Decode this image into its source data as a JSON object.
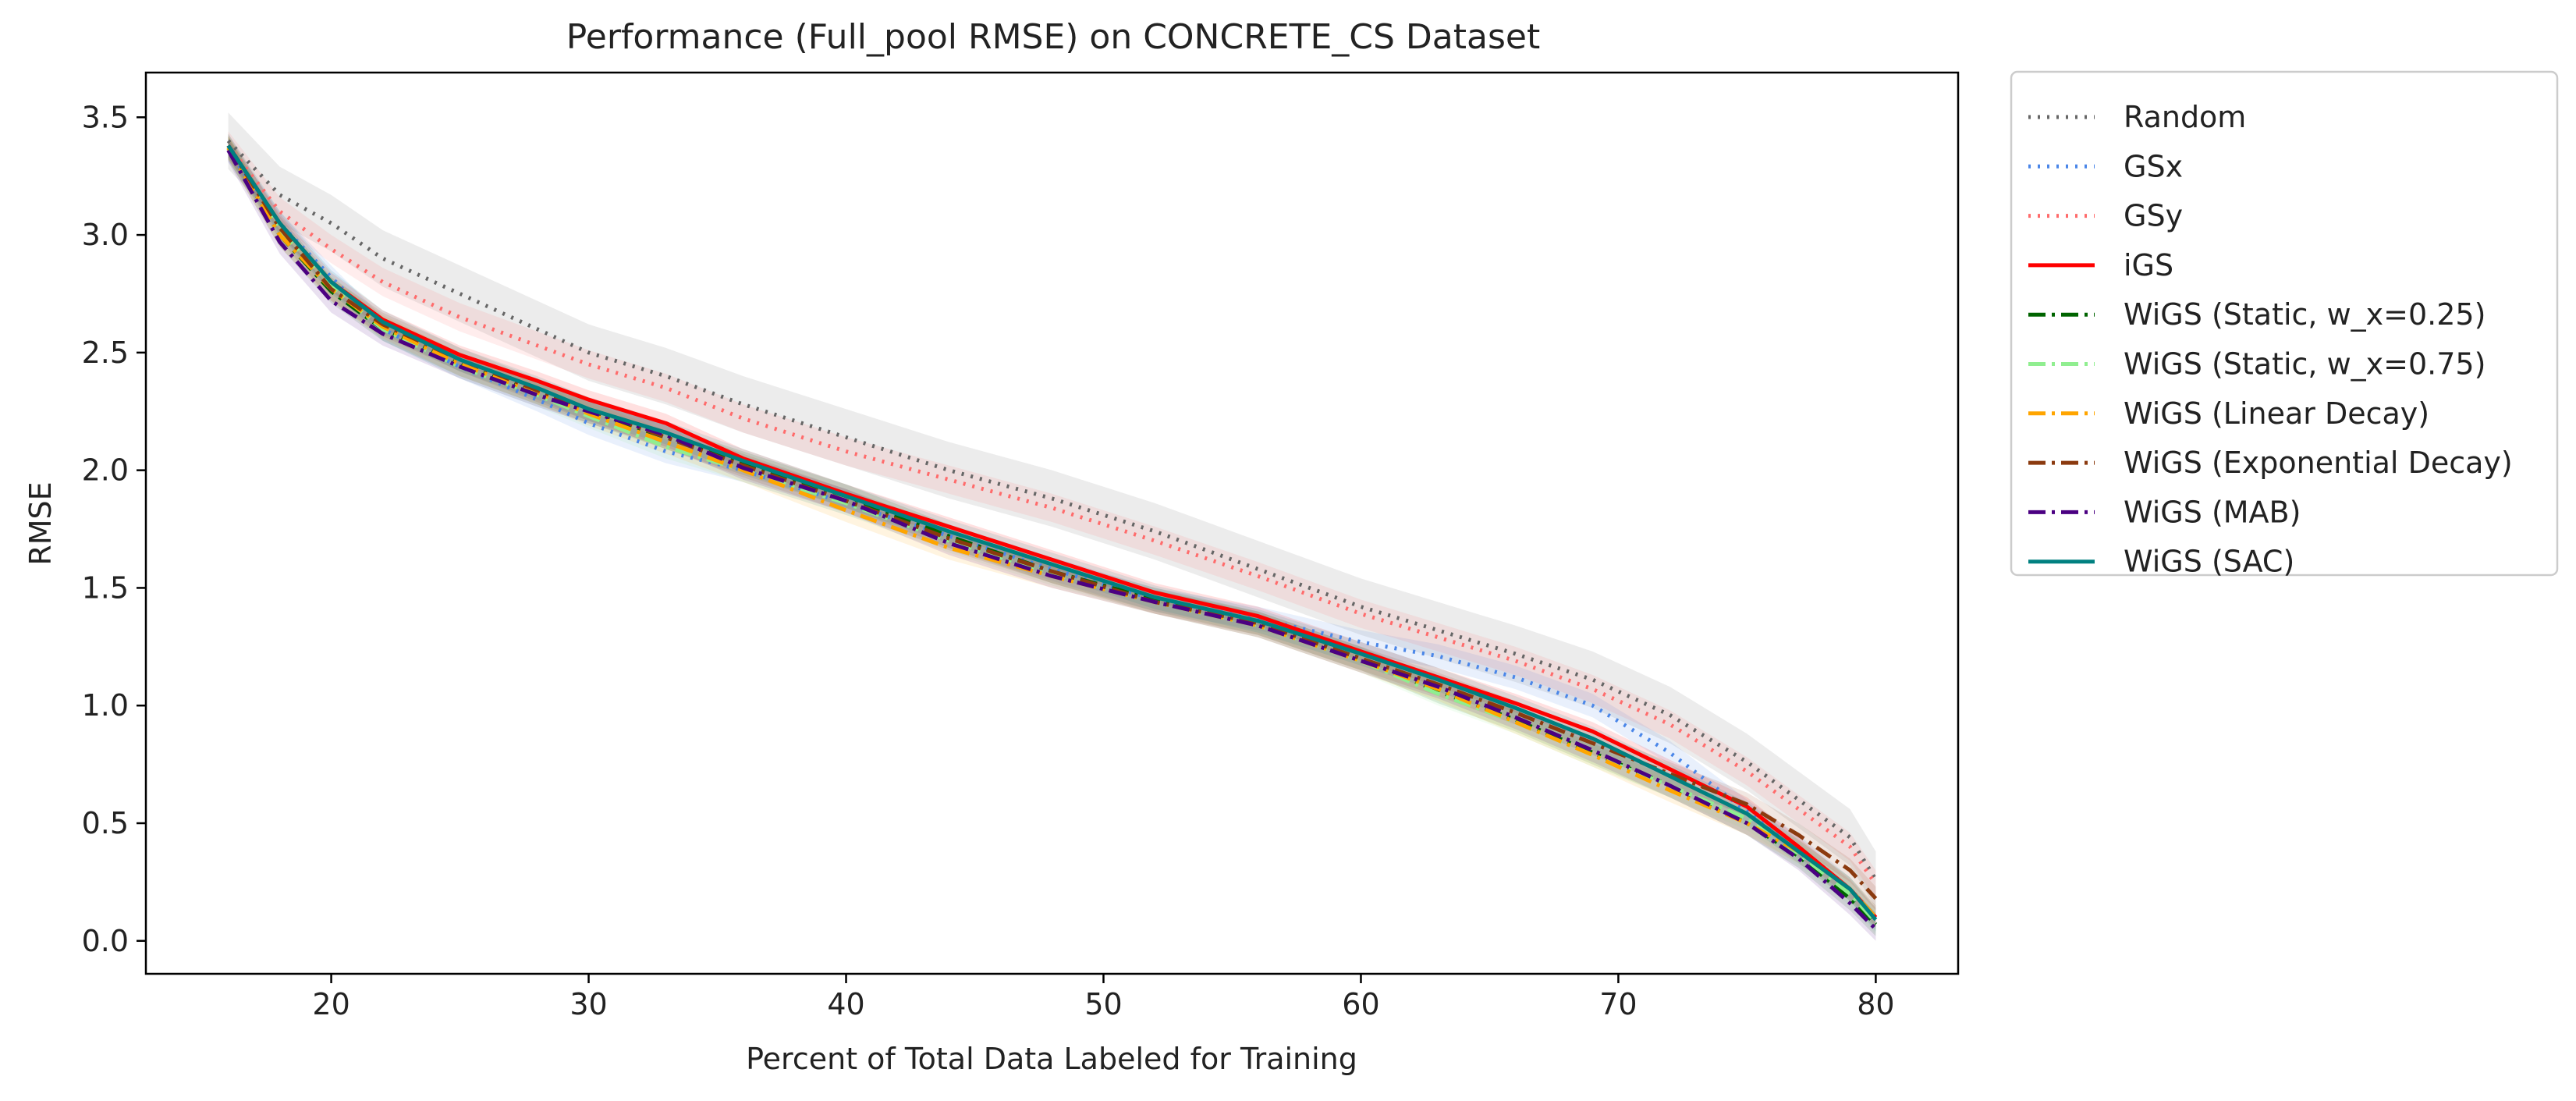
{
  "chart_data": {
    "type": "line",
    "title": "Performance (Full_pool RMSE) on CONCRETE_CS Dataset",
    "xlabel": "Percent of Total Data Labeled for Training",
    "ylabel": "RMSE",
    "xlim": [
      12.8,
      83.2
    ],
    "ylim": [
      -0.14,
      3.69
    ],
    "xticks": [
      20,
      30,
      40,
      50,
      60,
      70,
      80
    ],
    "yticks": [
      0.0,
      0.5,
      1.0,
      1.5,
      2.0,
      2.5,
      3.0,
      3.5
    ],
    "xtick_labels": [
      "20",
      "30",
      "40",
      "50",
      "60",
      "70",
      "80"
    ],
    "ytick_labels": [
      "0.0",
      "0.5",
      "1.0",
      "1.5",
      "2.0",
      "2.5",
      "3.0",
      "3.5"
    ],
    "grid": false,
    "legend_position": "outside right, top",
    "x": [
      16,
      18,
      20,
      22,
      25,
      28,
      30,
      33,
      36,
      40,
      44,
      48,
      52,
      56,
      60,
      63,
      66,
      69,
      72,
      75,
      77,
      79,
      80
    ],
    "series": [
      {
        "name": "Random",
        "color": "#666666",
        "dash": "dotted",
        "band_halfwidth": 0.12,
        "values": [
          3.4,
          3.17,
          3.05,
          2.9,
          2.75,
          2.6,
          2.5,
          2.4,
          2.28,
          2.14,
          2.0,
          1.88,
          1.74,
          1.58,
          1.42,
          1.32,
          1.22,
          1.11,
          0.96,
          0.76,
          0.6,
          0.44,
          0.26
        ]
      },
      {
        "name": "GSx",
        "color": "#4a86e8",
        "dash": "dotted",
        "band_halfwidth": 0.05,
        "values": [
          3.36,
          3.05,
          2.82,
          2.6,
          2.44,
          2.3,
          2.2,
          2.08,
          2.0,
          1.86,
          1.72,
          1.58,
          1.45,
          1.37,
          1.27,
          1.21,
          1.12,
          1.0,
          0.8,
          0.55,
          0.4,
          0.22,
          0.1
        ]
      },
      {
        "name": "GSy",
        "color": "#ff6b6b",
        "dash": "dotted",
        "band_halfwidth": 0.06,
        "values": [
          3.38,
          3.1,
          2.94,
          2.8,
          2.65,
          2.53,
          2.45,
          2.35,
          2.22,
          2.08,
          1.96,
          1.84,
          1.7,
          1.55,
          1.39,
          1.29,
          1.19,
          1.07,
          0.92,
          0.72,
          0.56,
          0.4,
          0.24
        ]
      },
      {
        "name": "iGS",
        "color": "#ff0000",
        "dash": "solid",
        "band_halfwidth": 0.04,
        "values": [
          3.38,
          3.05,
          2.8,
          2.64,
          2.49,
          2.38,
          2.3,
          2.2,
          2.05,
          1.9,
          1.76,
          1.62,
          1.48,
          1.38,
          1.23,
          1.12,
          1.01,
          0.89,
          0.73,
          0.57,
          0.4,
          0.22,
          0.1
        ]
      },
      {
        "name": "WiGS (Static, w_x=0.25)",
        "color": "#006400",
        "dash": "dashdot",
        "band_halfwidth": 0.05,
        "values": [
          3.37,
          3.0,
          2.76,
          2.6,
          2.45,
          2.33,
          2.25,
          2.14,
          2.03,
          1.89,
          1.72,
          1.57,
          1.45,
          1.35,
          1.2,
          1.06,
          0.94,
          0.8,
          0.66,
          0.5,
          0.36,
          0.18,
          0.07
        ]
      },
      {
        "name": "WiGS (Static, w_x=0.75)",
        "color": "#90ee90",
        "dash": "dashdot",
        "band_halfwidth": 0.05,
        "values": [
          3.37,
          3.02,
          2.78,
          2.6,
          2.44,
          2.32,
          2.23,
          2.1,
          2.0,
          1.86,
          1.7,
          1.56,
          1.44,
          1.34,
          1.19,
          1.05,
          0.93,
          0.79,
          0.66,
          0.52,
          0.37,
          0.2,
          0.08
        ]
      },
      {
        "name": "WiGS (Linear Decay)",
        "color": "#ffa500",
        "dash": "dashdot",
        "band_halfwidth": 0.05,
        "values": [
          3.37,
          3.0,
          2.77,
          2.61,
          2.45,
          2.33,
          2.24,
          2.12,
          2.0,
          1.83,
          1.67,
          1.55,
          1.44,
          1.34,
          1.19,
          1.07,
          0.93,
          0.79,
          0.64,
          0.5,
          0.38,
          0.22,
          0.1
        ]
      },
      {
        "name": "WiGS (Exponential Decay)",
        "color": "#8b3a0f",
        "dash": "dashdot",
        "band_halfwidth": 0.05,
        "values": [
          3.38,
          3.03,
          2.77,
          2.62,
          2.47,
          2.34,
          2.26,
          2.14,
          2.02,
          1.87,
          1.71,
          1.57,
          1.44,
          1.35,
          1.2,
          1.09,
          0.97,
          0.84,
          0.71,
          0.58,
          0.45,
          0.3,
          0.18
        ]
      },
      {
        "name": "WiGS (MAB)",
        "color": "#4b0082",
        "dash": "dashdot",
        "band_halfwidth": 0.05,
        "values": [
          3.36,
          2.97,
          2.72,
          2.58,
          2.44,
          2.32,
          2.25,
          2.15,
          2.01,
          1.87,
          1.69,
          1.55,
          1.44,
          1.34,
          1.19,
          1.08,
          0.95,
          0.81,
          0.66,
          0.5,
          0.35,
          0.16,
          0.05
        ]
      },
      {
        "name": "WiGS (SAC)",
        "color": "#008080",
        "dash": "solid",
        "band_halfwidth": 0.05,
        "values": [
          3.38,
          3.05,
          2.8,
          2.63,
          2.47,
          2.35,
          2.26,
          2.16,
          2.04,
          1.89,
          1.74,
          1.6,
          1.46,
          1.36,
          1.22,
          1.11,
          0.99,
          0.86,
          0.7,
          0.54,
          0.38,
          0.22,
          0.09
        ]
      }
    ]
  }
}
